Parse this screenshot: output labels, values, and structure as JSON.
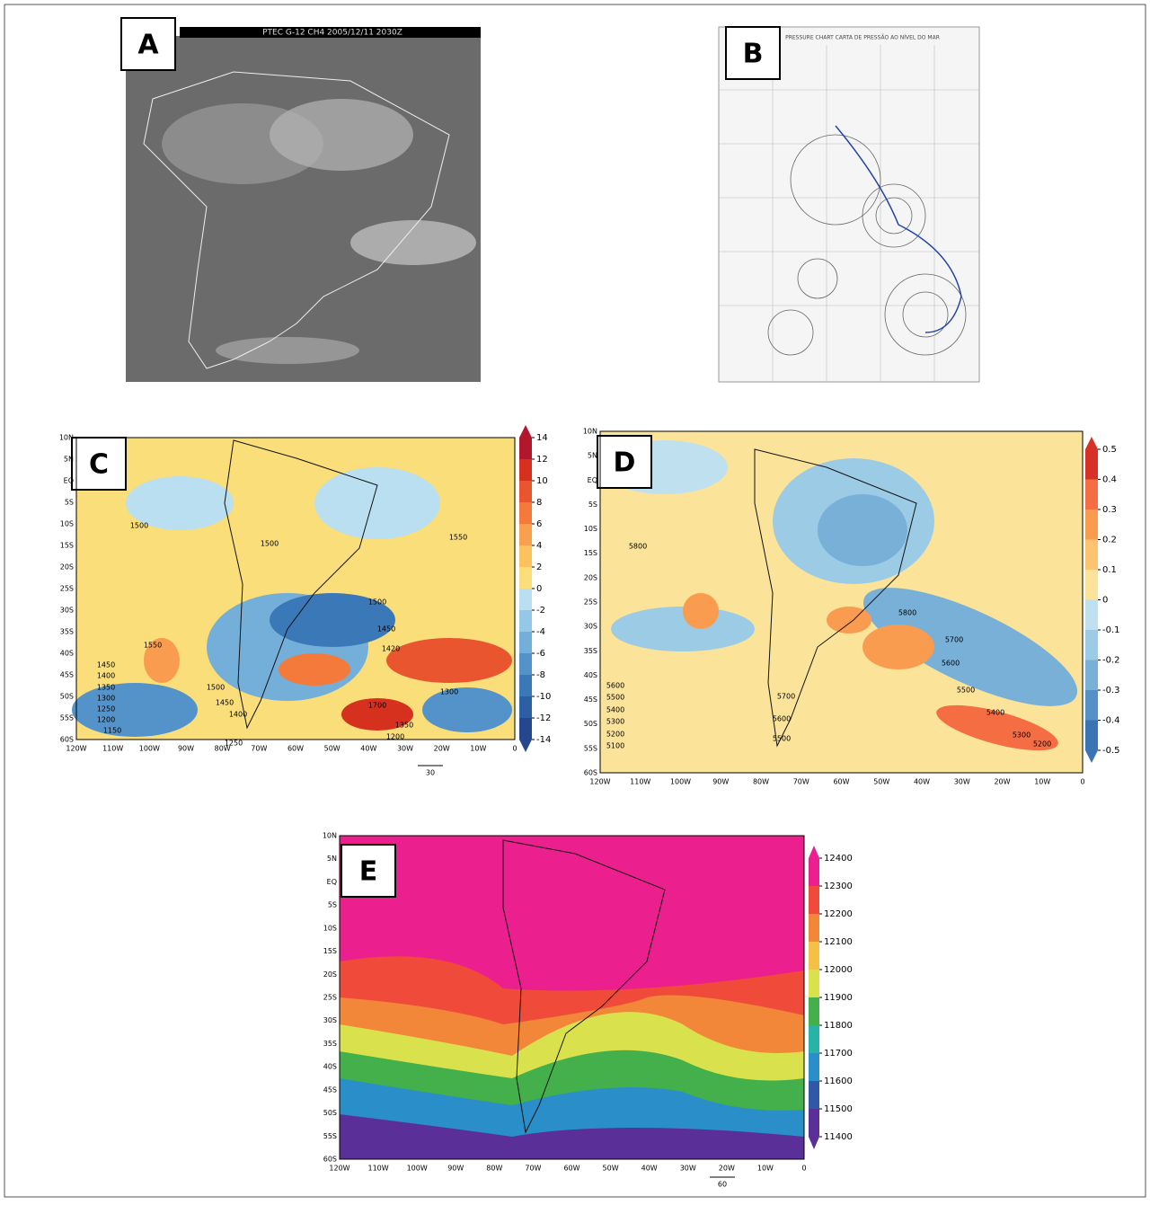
{
  "panels": [
    {
      "label": "A",
      "header": "PTEC G-12 CH4 2005/12/11 2030Z"
    },
    {
      "label": "B",
      "header": "PRESSURE CHART   CARTA DE PRESSÃO AO NÍVEL DO MAR"
    },
    {
      "label": "C",
      "lon_labels": [
        "120W",
        "110W",
        "100W",
        "90W",
        "80W",
        "70W",
        "60W",
        "50W",
        "40W",
        "30W",
        "20W",
        "10W",
        "0"
      ],
      "lat_labels": [
        "10N",
        "5N",
        "EQ",
        "5S",
        "10S",
        "15S",
        "20S",
        "25S",
        "30S",
        "35S",
        "40S",
        "45S",
        "50S",
        "55S",
        "60S"
      ],
      "colorbar": {
        "ticks": [
          14,
          12,
          10,
          8,
          6,
          4,
          2,
          0,
          -2,
          -4,
          -6,
          -8,
          -10,
          -12,
          -14
        ],
        "colors": [
          "#b2182b",
          "#d6301f",
          "#e8552e",
          "#f47a3c",
          "#f9a04d",
          "#fbc25e",
          "#f9de7a",
          "#b9dff0",
          "#95c8e6",
          "#74afd9",
          "#5393c9",
          "#3b78b8",
          "#2d5fa5",
          "#25478f"
        ]
      },
      "contour_labels": [
        "1500",
        "1500",
        "1550",
        "1500",
        "1450",
        "1420",
        "1550",
        "1450",
        "1400",
        "1350",
        "1300",
        "1250",
        "1200",
        "1150",
        "1500",
        "1450",
        "1400",
        "1250",
        "1700",
        "1350",
        "1200",
        "1300"
      ],
      "vector_key": "30"
    },
    {
      "label": "D",
      "lon_labels": [
        "120W",
        "110W",
        "100W",
        "90W",
        "80W",
        "70W",
        "60W",
        "50W",
        "40W",
        "30W",
        "20W",
        "10W",
        "0"
      ],
      "lat_labels": [
        "10N",
        "5N",
        "EQ",
        "5S",
        "10S",
        "15S",
        "20S",
        "25S",
        "30S",
        "35S",
        "40S",
        "45S",
        "50S",
        "55S",
        "60S"
      ],
      "colorbar": {
        "ticks": [
          0.5,
          0.4,
          0.3,
          0.2,
          0.1,
          0,
          -0.1,
          -0.2,
          -0.3,
          -0.4,
          -0.5
        ],
        "colors": [
          "#d73027",
          "#f46d43",
          "#f99c4f",
          "#fdc370",
          "#fbe39a",
          "#bfe0ef",
          "#9ccbe6",
          "#78b0d8",
          "#5591c7",
          "#3a74b5"
        ]
      },
      "contour_labels": [
        "5800",
        "5800",
        "5700",
        "5600",
        "5500",
        "5400",
        "5300",
        "5200",
        "5600",
        "5500",
        "5400",
        "5300",
        "5200",
        "5100",
        "5700",
        "5600",
        "5500"
      ]
    },
    {
      "label": "E",
      "lon_labels": [
        "120W",
        "110W",
        "100W",
        "90W",
        "80W",
        "70W",
        "60W",
        "50W",
        "40W",
        "30W",
        "20W",
        "10W",
        "0"
      ],
      "lat_labels": [
        "10N",
        "5N",
        "EQ",
        "5S",
        "10S",
        "15S",
        "20S",
        "25S",
        "30S",
        "35S",
        "40S",
        "45S",
        "50S",
        "55S",
        "60S"
      ],
      "colorbar": {
        "ticks": [
          12400,
          12300,
          12200,
          12100,
          12000,
          11900,
          11800,
          11700,
          11600,
          11500,
          11400
        ],
        "colors": [
          "#ec1f8e",
          "#ef4a3a",
          "#f2873a",
          "#f4c046",
          "#d9e24d",
          "#43b04c",
          "#27b3a6",
          "#2a8fc8",
          "#3058a8",
          "#5b2f98"
        ]
      },
      "vector_key": "60"
    }
  ]
}
